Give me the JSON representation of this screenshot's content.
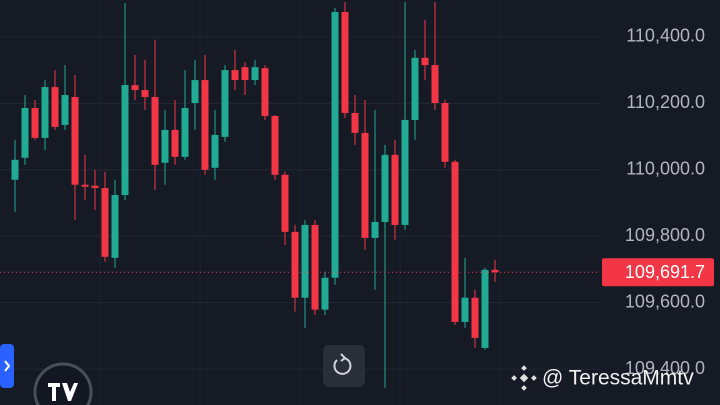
{
  "chart_data": {
    "type": "candlestick",
    "categories": [
      null,
      null,
      null,
      null,
      null,
      null,
      null,
      null,
      null,
      null,
      null,
      null,
      null,
      null,
      null,
      null,
      null,
      null,
      null,
      null,
      null,
      null,
      null,
      null,
      null,
      null,
      null,
      null,
      null,
      null,
      null,
      null,
      null,
      null,
      null,
      null,
      null,
      null,
      null,
      null,
      null,
      null,
      null,
      null,
      null,
      null,
      null,
      null,
      null
    ],
    "open": [
      109970,
      110036,
      110186,
      110096,
      110249,
      110135,
      110219,
      109955,
      109952,
      109945,
      109735,
      109924,
      110255,
      110240,
      110219,
      110021,
      110120,
      110039,
      110201,
      110270,
      110006,
      110099,
      110300,
      110309,
      110270,
      110306,
      110162,
      109985,
      109813,
      109615,
      109834,
      109579,
      109675,
      110475,
      110171,
      110111,
      109795,
      109843,
      110045,
      109834,
      110150,
      110337,
      110315,
      110201,
      110024,
      109542,
      109615,
      109464,
      109699
    ],
    "high": [
      110090,
      110225,
      110210,
      110270,
      110300,
      110315,
      110285,
      110045,
      110000,
      109994,
      109970,
      110502,
      110346,
      110331,
      110391,
      110180,
      110210,
      110300,
      110331,
      110346,
      110180,
      110315,
      110361,
      110324,
      110331,
      110315,
      110165,
      109994,
      109834,
      109849,
      109849,
      109693,
      110487,
      110505,
      110225,
      110210,
      110180,
      110075,
      110090,
      110505,
      110361,
      110451,
      110505,
      110210,
      110030,
      109735,
      109639,
      109705,
      109729
    ],
    "low": [
      109873,
      110015,
      110090,
      110060,
      110120,
      110120,
      109849,
      109909,
      109879,
      109723,
      109705,
      109909,
      110210,
      110180,
      109939,
      109955,
      110015,
      110030,
      110120,
      109985,
      109970,
      110084,
      110240,
      110225,
      110255,
      110150,
      109970,
      109774,
      109573,
      109524,
      109563,
      109563,
      109654,
      110156,
      110075,
      109759,
      109639,
      109344,
      109789,
      109819,
      110090,
      110270,
      110180,
      110006,
      109533,
      109524,
      109464,
      109458,
      109663
    ],
    "close": [
      110030,
      110186,
      110096,
      110249,
      110129,
      110225,
      109955,
      109949,
      109945,
      109738,
      109924,
      110255,
      110240,
      110219,
      110015,
      110120,
      110039,
      110186,
      110270,
      110000,
      110105,
      110300,
      110270,
      110270,
      110309,
      110162,
      109985,
      109813,
      109615,
      109834,
      109579,
      109675,
      110475,
      110171,
      110111,
      109795,
      109843,
      110045,
      109834,
      110150,
      110337,
      110315,
      110201,
      110024,
      109542,
      109615,
      109494,
      109699,
      109691.7
    ],
    "up_color": "#22ab94",
    "down_color": "#f23645",
    "ylim": [
      109292,
      110511
    ],
    "yticks": [
      {
        "value": 109400,
        "label": "109,400.0"
      },
      {
        "value": 109600,
        "label": "109,600.0"
      },
      {
        "value": 109800,
        "label": "109,800.0"
      },
      {
        "value": 110000,
        "label": "110,000.0"
      },
      {
        "value": 110200,
        "label": "110,200.0"
      },
      {
        "value": 110400,
        "label": "110,400.0"
      }
    ],
    "grid": true,
    "last_price": {
      "value": 109691.7,
      "label": "109,691.7"
    },
    "watermark": "@ TeressaMmtv"
  }
}
